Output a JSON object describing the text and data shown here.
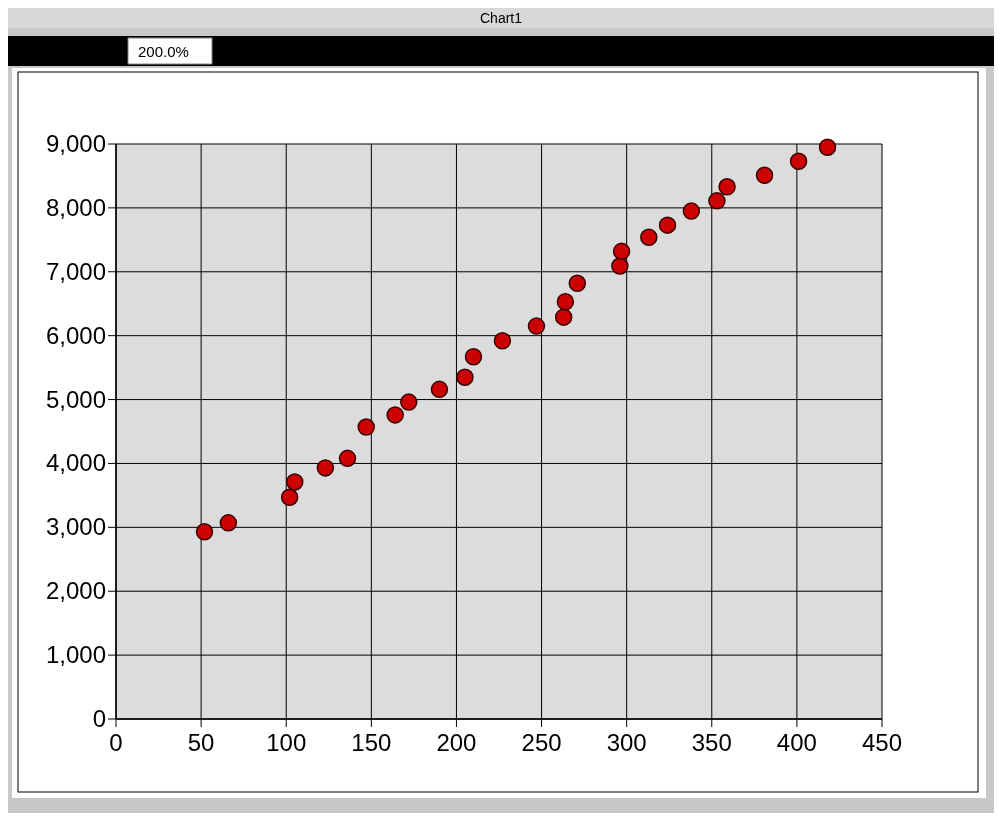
{
  "chart_data": {
    "type": "scatter",
    "title": "Chart1",
    "annotations": [
      "200.0%"
    ],
    "x": [
      52,
      66,
      102,
      105,
      123,
      136,
      147,
      164,
      172,
      190,
      205,
      210,
      227,
      247,
      263,
      264,
      271,
      296,
      297,
      313,
      324,
      338,
      353,
      359,
      381,
      401,
      418
    ],
    "series": [
      {
        "color": "#cc0000",
        "values": [
          2930,
          3070,
          3470,
          3710,
          3930,
          4080,
          4570,
          4760,
          4960,
          5160,
          5350,
          5670,
          5920,
          6150,
          6290,
          6530,
          6820,
          7090,
          7320,
          7540,
          7730,
          7950,
          8110,
          8330,
          8510,
          8730,
          8950
        ]
      }
    ],
    "xlim": [
      0,
      450
    ],
    "xticks": [
      0,
      50,
      100,
      150,
      200,
      250,
      300,
      350,
      400,
      450
    ],
    "ylim": [
      0,
      9000
    ],
    "yticks": [
      0,
      {
        "value": 1000,
        "label": "1,000"
      },
      {
        "value": 2000,
        "label": "2,000"
      },
      {
        "value": 3000,
        "label": "3,000"
      },
      {
        "value": 4000,
        "label": "4,000"
      },
      {
        "value": 5000,
        "label": "5,000"
      },
      {
        "value": 6000,
        "label": "6,000"
      },
      {
        "value": 7000,
        "label": "7,000"
      },
      {
        "value": 8000,
        "label": "8,000"
      },
      {
        "value": 9000,
        "label": "9,000"
      }
    ],
    "grid": true,
    "marker": "circle"
  }
}
